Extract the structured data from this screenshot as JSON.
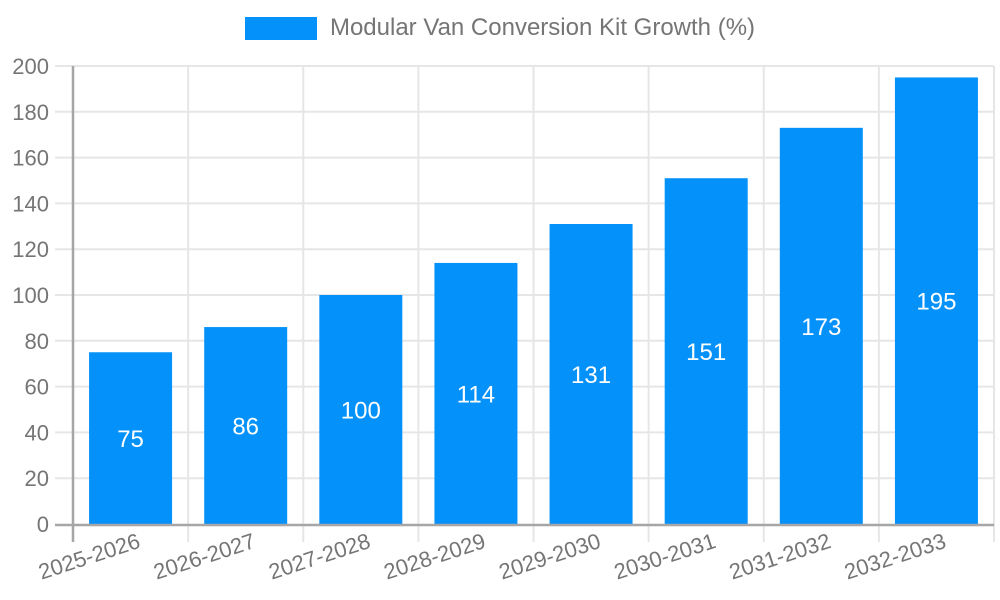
{
  "legend": {
    "label": "Modular Van Conversion Kit Growth (%)"
  },
  "chart_data": {
    "type": "bar",
    "title": "Modular Van Conversion Kit Growth (%)",
    "categories": [
      "2025-2026",
      "2026-2027",
      "2027-2028",
      "2028-2029",
      "2029-2030",
      "2030-2031",
      "2031-2032",
      "2032-2033"
    ],
    "series": [
      {
        "name": "Modular Van Conversion Kit Growth (%)",
        "values": [
          75,
          86,
          100,
          114,
          131,
          151,
          173,
          195
        ]
      }
    ],
    "value_labels_shown": [
      75,
      86,
      100,
      114,
      131,
      151,
      173,
      195
    ],
    "xlabel": "",
    "ylabel": "",
    "ylim": [
      0,
      200
    ],
    "ytick_step": 20,
    "yticks": [
      0,
      20,
      40,
      60,
      80,
      100,
      120,
      140,
      160,
      180,
      200
    ],
    "grid": true,
    "legend_position": "top-center",
    "value_label_position": "centered-inside-bar",
    "x_tick_label_rotation_deg": -18,
    "colors": {
      "bar": "#0591fa",
      "value_label": "#ffffff",
      "axis_text": "#757575",
      "gridline": "#e6e6e6",
      "axis_line": "#a6a6a6"
    }
  }
}
